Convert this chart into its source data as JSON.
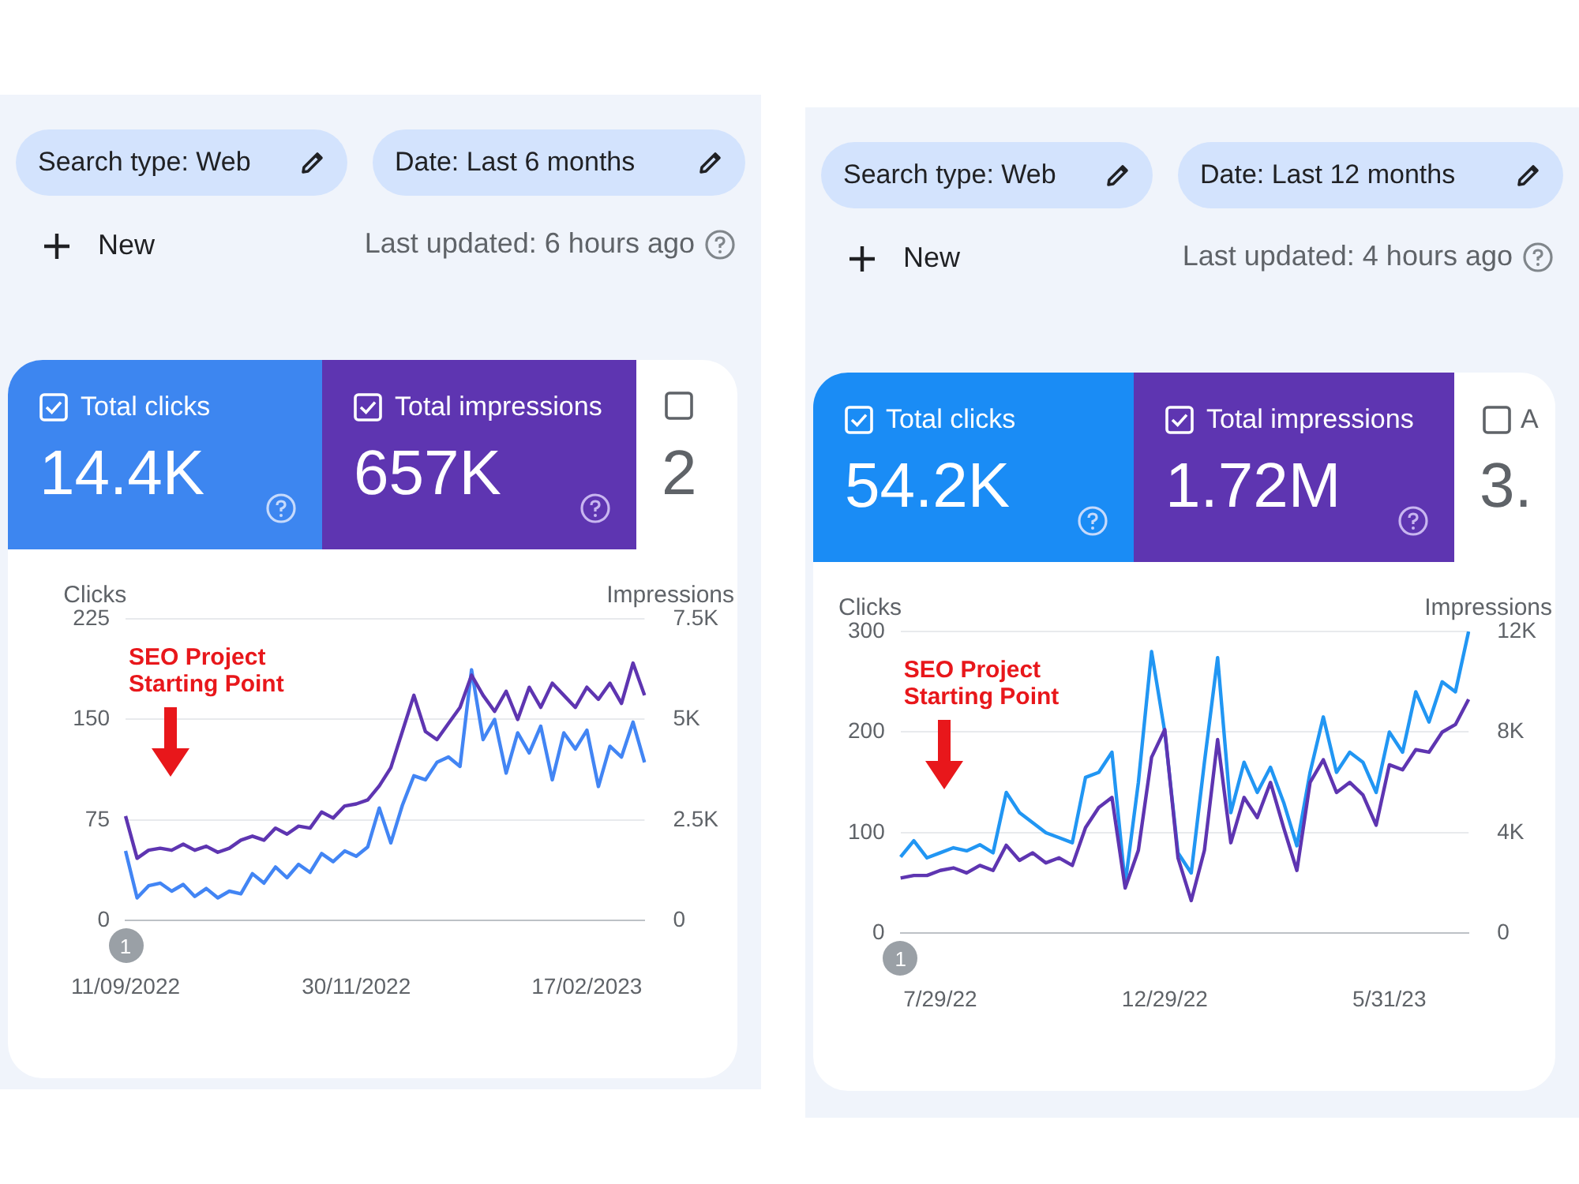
{
  "chart_data": [
    {
      "type": "line",
      "ylabel": "Clicks",
      "y2label": "Impressions",
      "categories": [
        "11/09/2022",
        null,
        null,
        null,
        null,
        null,
        null,
        null,
        null,
        null,
        null,
        null,
        null,
        null,
        null,
        null,
        null,
        null,
        null,
        null,
        "30/11/2022",
        null,
        null,
        null,
        null,
        null,
        null,
        null,
        null,
        null,
        null,
        null,
        null,
        null,
        null,
        null,
        null,
        null,
        null,
        null,
        "17/02/2023",
        null,
        null,
        null,
        null,
        null
      ],
      "series": [
        {
          "color": "#5e35b1",
          "axis": "y2",
          "values": [
            2600,
            1550,
            1750,
            1800,
            1750,
            1900,
            1750,
            1850,
            1700,
            1800,
            2000,
            2100,
            2000,
            2300,
            2150,
            2350,
            2300,
            2700,
            2550,
            2850,
            2900,
            3000,
            3350,
            3800,
            4700,
            5600,
            4700,
            4500,
            4900,
            5300,
            6100,
            5600,
            5200,
            5700,
            5000,
            5800,
            5300,
            5900,
            5600,
            5300,
            5800,
            5500,
            5900,
            5400,
            6400,
            5600
          ]
        },
        {
          "color": "#4285f4",
          "values": [
            52,
            17,
            26,
            28,
            22,
            27,
            18,
            24,
            17,
            22,
            20,
            35,
            28,
            40,
            32,
            42,
            36,
            50,
            44,
            52,
            48,
            55,
            84,
            58,
            86,
            108,
            105,
            118,
            122,
            115,
            187,
            135,
            150,
            110,
            140,
            125,
            145,
            105,
            140,
            128,
            142,
            100,
            130,
            122,
            148,
            118
          ]
        }
      ],
      "ylim": [
        0,
        225
      ],
      "yticks": [
        0,
        75,
        150,
        225
      ],
      "y2lim": [
        0,
        7500
      ],
      "y2ticks": [
        {
          "value": 0,
          "label": "0"
        },
        {
          "value": 2500,
          "label": "2.5K"
        },
        {
          "value": 5000,
          "label": "5K"
        },
        {
          "value": 7500,
          "label": "7.5K"
        }
      ],
      "grid": "y",
      "annotations": [
        "Search type: Web",
        "Date: Last 6 months",
        "New",
        "Last updated: 6 hours ago",
        "Total clicks",
        "14.4K",
        "Total impressions",
        "657K",
        "2",
        "SEO Project Starting Point",
        "1"
      ]
    },
    {
      "type": "line",
      "ylabel": "Clicks",
      "y2label": "Impressions",
      "categories": [
        null,
        null,
        null,
        "7/29/22",
        null,
        null,
        null,
        null,
        null,
        null,
        null,
        null,
        null,
        null,
        null,
        null,
        null,
        null,
        null,
        null,
        "12/29/22",
        null,
        null,
        null,
        null,
        null,
        null,
        null,
        null,
        null,
        null,
        null,
        null,
        null,
        null,
        null,
        null,
        "5/31/23",
        null,
        null,
        null,
        null,
        null,
        null
      ],
      "series": [
        {
          "color": "#5e35b1",
          "axis": "y2",
          "values": [
            2200,
            2300,
            2300,
            2500,
            2600,
            2400,
            2700,
            2500,
            3500,
            2900,
            3200,
            2800,
            3000,
            2700,
            4200,
            5000,
            5400,
            1800,
            3300,
            7000,
            8100,
            3000,
            1300,
            3300,
            7700,
            3600,
            5400,
            4600,
            6000,
            4200,
            2500,
            6000,
            6900,
            5600,
            6000,
            5500,
            4300,
            6700,
            6500,
            7300,
            7200,
            8000,
            8300,
            9300
          ]
        },
        {
          "color": "#2196f3",
          "values": [
            76,
            92,
            75,
            80,
            85,
            82,
            88,
            80,
            140,
            120,
            110,
            100,
            95,
            90,
            155,
            160,
            180,
            49,
            150,
            280,
            200,
            80,
            60,
            170,
            274,
            120,
            170,
            140,
            165,
            130,
            87,
            160,
            215,
            160,
            180,
            170,
            140,
            200,
            180,
            240,
            210,
            250,
            240,
            300
          ]
        }
      ],
      "ylim": [
        0,
        300
      ],
      "yticks": [
        0,
        100,
        200,
        300
      ],
      "y2lim": [
        0,
        12000
      ],
      "y2ticks": [
        {
          "value": 0,
          "label": "0"
        },
        {
          "value": 4000,
          "label": "4K"
        },
        {
          "value": 8000,
          "label": "8K"
        },
        {
          "value": 12000,
          "label": "12K"
        }
      ],
      "grid": "y",
      "annotations": [
        "Search type: Web",
        "Date: Last 12 months",
        "New",
        "Last updated: 4 hours ago",
        "Total clicks",
        "54.2K",
        "Total impressions",
        "1.72M",
        "3.",
        "SEO Project Starting Point",
        "1",
        "A"
      ]
    }
  ]
}
